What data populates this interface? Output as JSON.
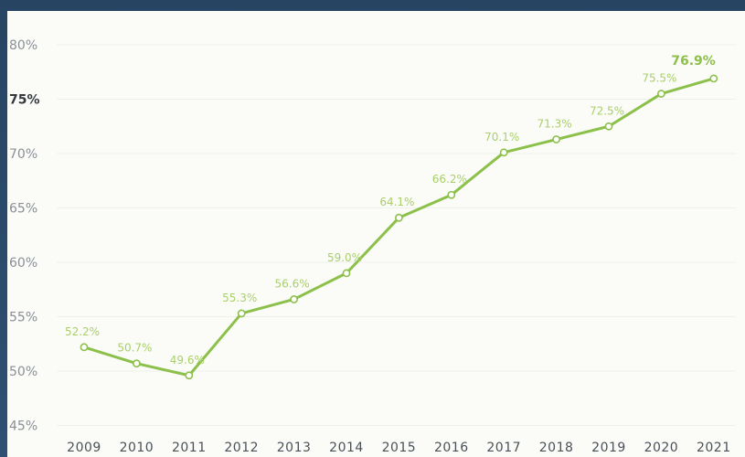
{
  "chart_data": {
    "type": "line",
    "categories": [
      "2009",
      "2010",
      "2011",
      "2012",
      "2013",
      "2014",
      "2015",
      "2016",
      "2017",
      "2018",
      "2019",
      "2020",
      "2021"
    ],
    "values": [
      52.2,
      50.7,
      49.6,
      55.3,
      56.6,
      59.0,
      64.1,
      66.2,
      70.1,
      71.3,
      72.5,
      75.5,
      76.9
    ],
    "data_labels": [
      "52.2%",
      "50.7%",
      "49.6%",
      "55.3%",
      "56.6%",
      "59.0%",
      "64.1%",
      "66.2%",
      "70.1%",
      "71.3%",
      "72.5%",
      "75.5%",
      "76.9%"
    ],
    "y_ticks": [
      "45%",
      "50%",
      "55%",
      "60%",
      "65%",
      "70%",
      "75%",
      "80%"
    ],
    "y_tick_values": [
      45,
      50,
      55,
      60,
      65,
      70,
      75,
      80
    ],
    "ylim": [
      45,
      80
    ],
    "title": "",
    "xlabel": "",
    "ylabel": "",
    "grid": false,
    "colors": {
      "line": "#8cc04a",
      "marker_fill": "#ffffff",
      "label": "#a9cf6a",
      "background": "#fbfcf8",
      "frame": "#2c4a6b"
    }
  }
}
